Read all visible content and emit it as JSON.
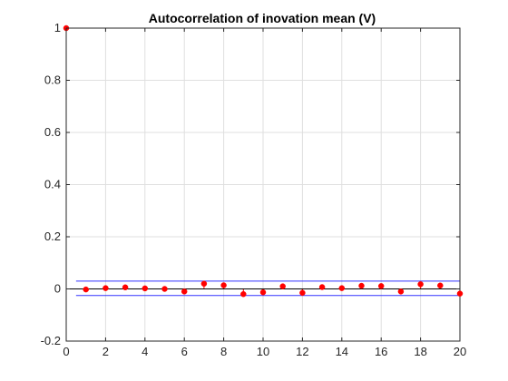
{
  "chart_data": {
    "type": "stem",
    "title": "Autocorrelation of inovation mean (V)",
    "xlabel": "",
    "ylabel": "",
    "xlim": [
      0,
      20
    ],
    "ylim": [
      -0.2,
      1
    ],
    "xticks": [
      "0",
      "2",
      "4",
      "6",
      "8",
      "10",
      "12",
      "14",
      "16",
      "18",
      "20"
    ],
    "yticks": [
      "-0.2",
      "0",
      "0.2",
      "0.4",
      "0.6",
      "0.8",
      "1"
    ],
    "grid": true,
    "lags": [
      0,
      1,
      2,
      3,
      4,
      5,
      6,
      7,
      8,
      9,
      10,
      11,
      12,
      13,
      14,
      15,
      16,
      17,
      18,
      19,
      20
    ],
    "values": [
      1.0,
      -0.002,
      0.003,
      0.006,
      0.002,
      0.0,
      -0.01,
      0.02,
      0.014,
      -0.02,
      -0.013,
      0.01,
      -0.015,
      0.007,
      0.003,
      0.012,
      0.011,
      -0.01,
      0.018,
      0.013,
      -0.018
    ],
    "confidence_bounds": [
      0.03,
      -0.025
    ],
    "confidence_x_range": [
      0.5,
      20
    ],
    "colors": {
      "stem": "#ff0000",
      "bounds": "#3333ff",
      "zero_line": "#000000",
      "grid": "#dfdfdf",
      "axis": "#262626"
    }
  }
}
